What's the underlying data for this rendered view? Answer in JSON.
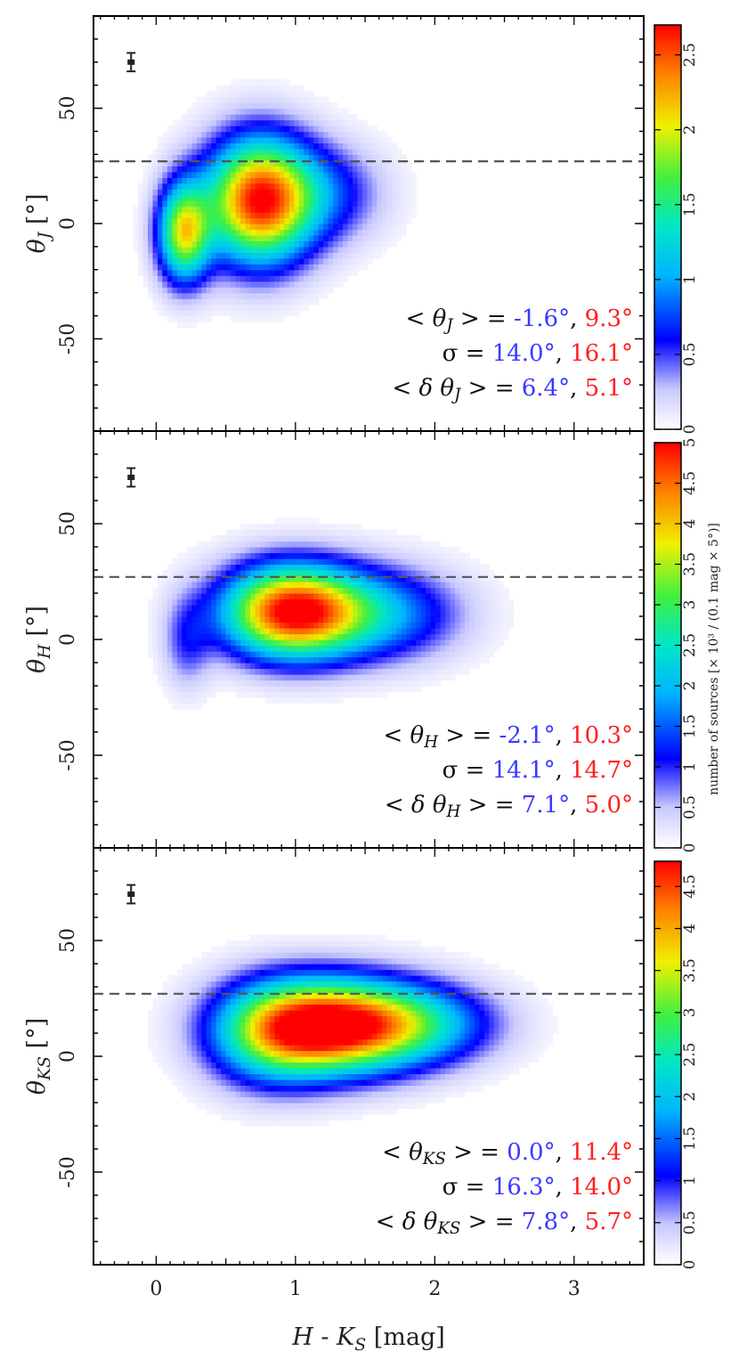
{
  "chart_data": {
    "type": "heatmap",
    "xlabel": "H - K_S [mag]",
    "xlim": [
      -0.45,
      3.5
    ],
    "x_ticks": [
      0,
      1,
      2,
      3
    ],
    "colorbar_label": "number of sources [× 10³ / (0.1 mag × 5°)]",
    "colors": {
      "blue_text": "#3a3aff",
      "red_text": "#ff2020",
      "dash": "#555555"
    },
    "panels": [
      {
        "id": "J",
        "ylabel": "θ_J [°]",
        "ylim": [
          -90,
          90
        ],
        "y_ticks": [
          -50,
          0,
          50
        ],
        "dashed_line_y": 27,
        "error_bar": {
          "x": -0.18,
          "y": 70,
          "yerr": 4
        },
        "colorbar": {
          "min": 0,
          "max": 2.7,
          "ticks": [
            0,
            0.5,
            1,
            1.5,
            2,
            2.5
          ]
        },
        "blobs": [
          {
            "x": 0.18,
            "y": -5,
            "sx": 0.13,
            "sy": 15,
            "amp": 1.9
          },
          {
            "x": 0.72,
            "y": 9,
            "sx": 0.27,
            "sy": 19,
            "amp": 2.6
          },
          {
            "x": 1.2,
            "y": 12,
            "sx": 0.3,
            "sy": 15,
            "amp": 0.6
          }
        ],
        "annotations": [
          {
            "label": "< θ_J > = ",
            "blue": "-1.6°",
            "red": "9.3°"
          },
          {
            "label": "σ = ",
            "blue": "14.0°",
            "red": "16.1°"
          },
          {
            "label": "< δ θ_J > = ",
            "blue": "6.4°",
            "red": "5.1°"
          }
        ]
      },
      {
        "id": "H",
        "ylabel": "θ_H [°]",
        "ylim": [
          -90,
          90
        ],
        "y_ticks": [
          -50,
          0,
          50
        ],
        "dashed_line_y": 27,
        "error_bar": {
          "x": -0.18,
          "y": 70,
          "yerr": 4
        },
        "colorbar": {
          "min": 0,
          "max": 5,
          "ticks": [
            0,
            0.5,
            1,
            1.5,
            2,
            2.5,
            3,
            3.5,
            4,
            4.5,
            5
          ]
        },
        "blobs": [
          {
            "x": 0.95,
            "y": 11,
            "sx": 0.35,
            "sy": 14,
            "amp": 4.9
          },
          {
            "x": 1.6,
            "y": 10,
            "sx": 0.4,
            "sy": 14,
            "amp": 1.7
          },
          {
            "x": 0.2,
            "y": -3,
            "sx": 0.12,
            "sy": 14,
            "amp": 0.8
          }
        ],
        "annotations": [
          {
            "label": "< θ_H > = ",
            "blue": "-2.1°",
            "red": "10.3°"
          },
          {
            "label": "σ = ",
            "blue": "14.1°",
            "red": "14.7°"
          },
          {
            "label": "< δ θ_H > = ",
            "blue": "7.1°",
            "red": "5.0°"
          }
        ]
      },
      {
        "id": "K",
        "ylabel": "θ_K_S [°]",
        "ylim": [
          -90,
          90
        ],
        "y_ticks": [
          -50,
          0,
          50
        ],
        "dashed_line_y": 27,
        "error_bar": {
          "x": -0.18,
          "y": 70,
          "yerr": 4
        },
        "colorbar": {
          "min": 0,
          "max": 4.8,
          "ticks": [
            0,
            0.5,
            1,
            1.5,
            2,
            2.5,
            3,
            3.5,
            4,
            4.5
          ]
        },
        "blobs": [
          {
            "x": 1.25,
            "y": 12,
            "sx": 0.45,
            "sy": 14,
            "amp": 4.7
          },
          {
            "x": 0.8,
            "y": 8,
            "sx": 0.32,
            "sy": 16,
            "amp": 1.7
          },
          {
            "x": 1.9,
            "y": 13,
            "sx": 0.4,
            "sy": 12,
            "amp": 1.5
          }
        ],
        "annotations": [
          {
            "label": "< θ_K_S > = ",
            "blue": "0.0°",
            "red": "11.4°"
          },
          {
            "label": "σ = ",
            "blue": "16.3°",
            "red": "14.0°"
          },
          {
            "label": "< δ θ_K_S > = ",
            "blue": "7.8°",
            "red": "5.7°"
          }
        ]
      }
    ]
  }
}
